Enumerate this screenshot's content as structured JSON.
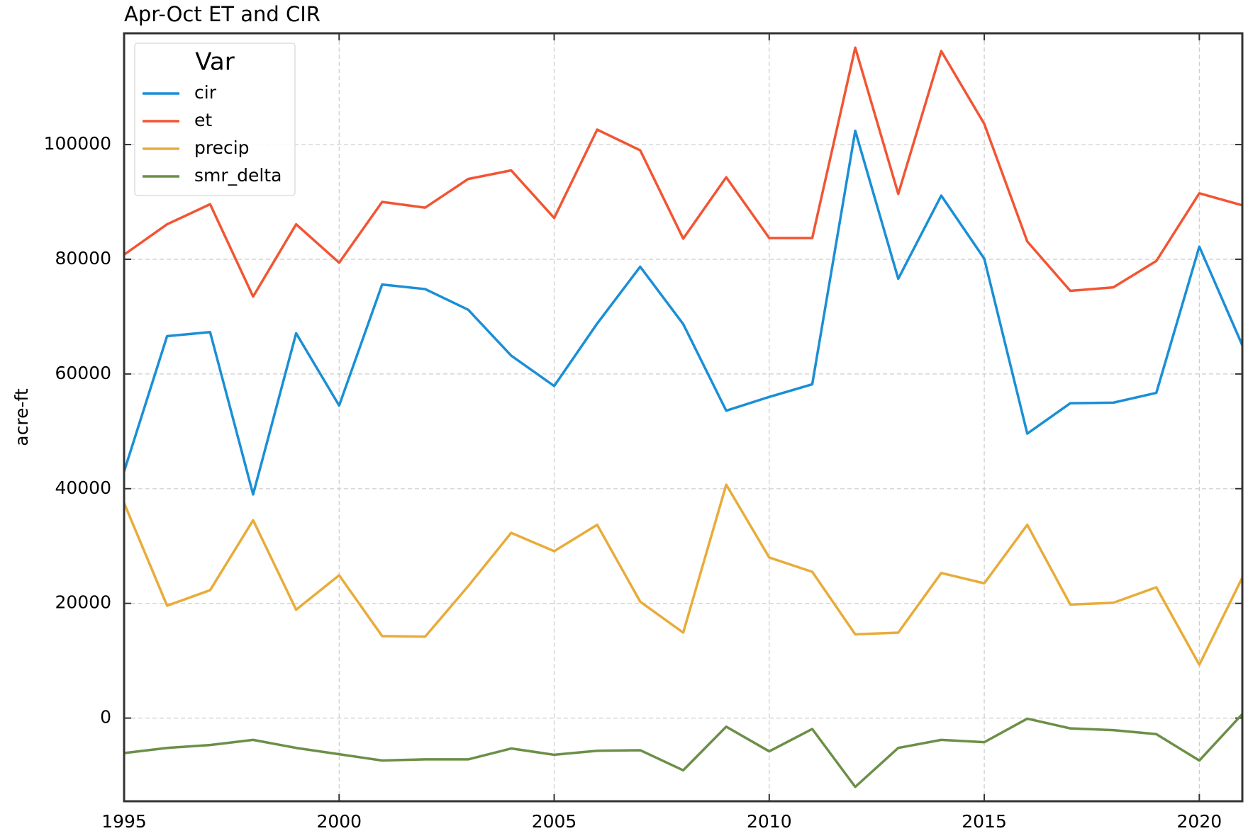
{
  "chart_data": {
    "type": "line",
    "title": "Apr-Oct ET and CIR",
    "y_label": "acre-ft",
    "legend_title": "Var",
    "legend": "upper left",
    "grid": true,
    "x": [
      1995,
      1996,
      1997,
      1998,
      1999,
      2000,
      2001,
      2002,
      2003,
      2004,
      2005,
      2006,
      2007,
      2008,
      2009,
      2010,
      2011,
      2012,
      2013,
      2014,
      2015,
      2016,
      2017,
      2018,
      2019,
      2020,
      2021
    ],
    "xlim": [
      1995,
      2021
    ],
    "xticks": [
      1995,
      2000,
      2005,
      2010,
      2015,
      2020
    ],
    "ylim": [
      -14500,
      119400
    ],
    "yticks": [
      0,
      20000,
      40000,
      60000,
      80000,
      100000
    ],
    "series": [
      {
        "name": "cir",
        "color": "#1a8fd6",
        "values": [
          43000,
          66600,
          67300,
          39000,
          67100,
          54500,
          75600,
          74800,
          71200,
          63200,
          57900,
          68800,
          78700,
          68700,
          53600,
          56000,
          58200,
          102400,
          76600,
          91100,
          80100,
          49600,
          54900,
          55000,
          56700,
          82200,
          65000
        ]
      },
      {
        "name": "et",
        "color": "#f25533",
        "values": [
          80800,
          86100,
          89600,
          73500,
          86100,
          79400,
          90000,
          89000,
          94000,
          95500,
          87200,
          102600,
          99000,
          83600,
          94300,
          83700,
          83700,
          116900,
          91400,
          116300,
          103600,
          83100,
          74500,
          75100,
          79700,
          91500,
          89400
        ]
      },
      {
        "name": "precip",
        "color": "#e8ac3a",
        "values": [
          37500,
          19600,
          22300,
          34500,
          18900,
          24900,
          14300,
          14200,
          23000,
          32300,
          29100,
          33700,
          20300,
          14900,
          40700,
          28000,
          25500,
          14600,
          14900,
          25300,
          23500,
          33700,
          19800,
          20100,
          22800,
          9300,
          24500
        ]
      },
      {
        "name": "smr_delta",
        "color": "#6b8f47",
        "values": [
          -6100,
          -5200,
          -4700,
          -3800,
          -5200,
          -6300,
          -7400,
          -7200,
          -7200,
          -5300,
          -6400,
          -5700,
          -5600,
          -9100,
          -1500,
          -5800,
          -1900,
          -12000,
          -5200,
          -3800,
          -4200,
          -100,
          -1800,
          -2100,
          -2800,
          -7400,
          700
        ]
      }
    ]
  }
}
